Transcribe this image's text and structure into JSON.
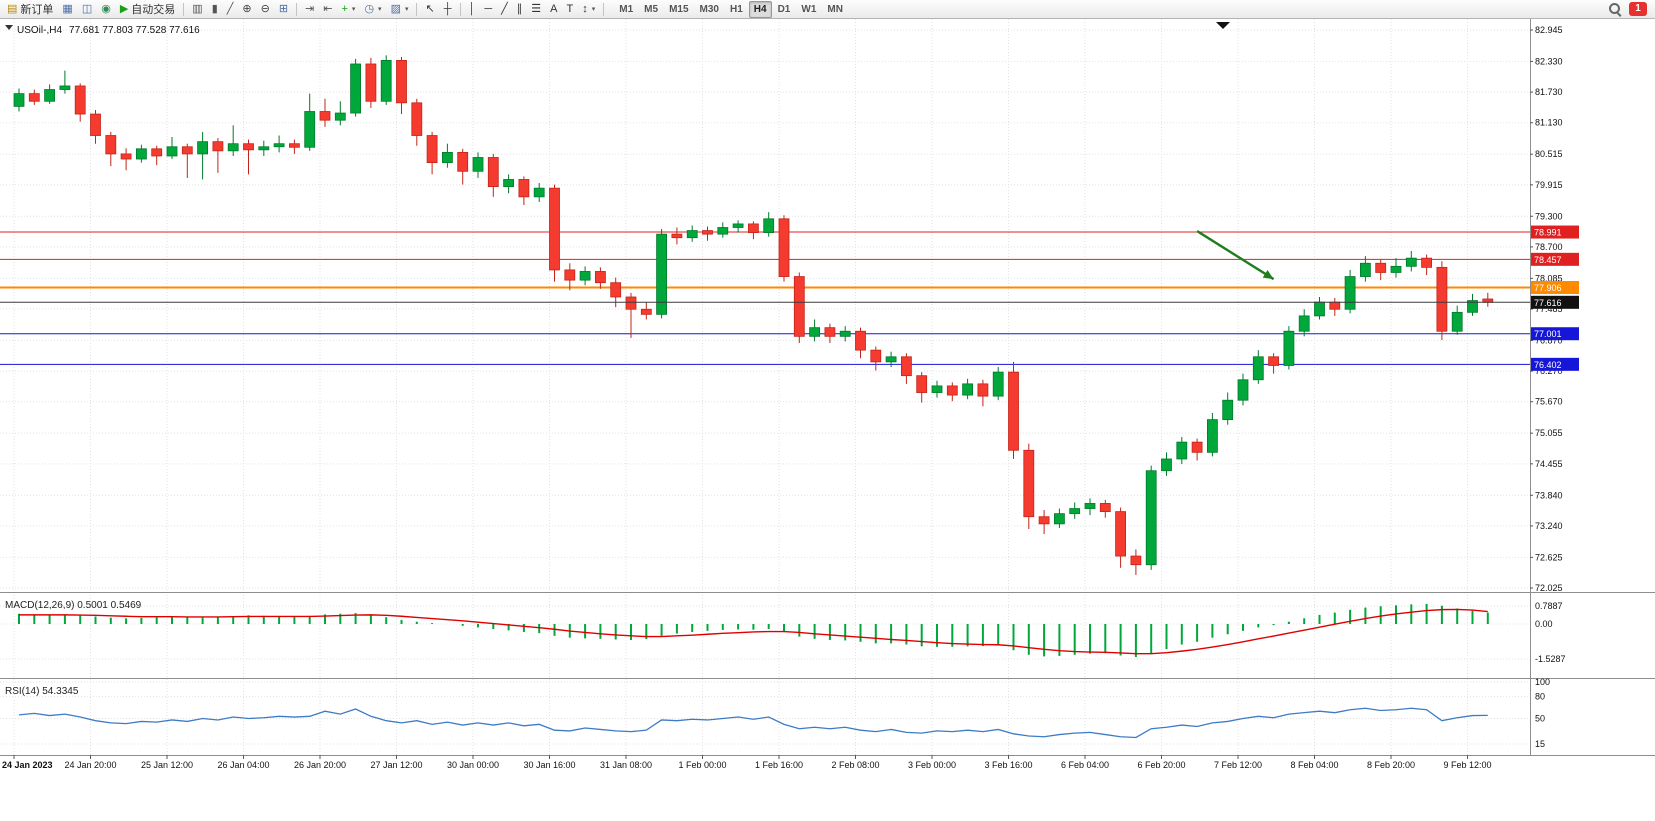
{
  "toolbar": {
    "items": [
      {
        "name": "new-order-button",
        "glyph": "▤",
        "color": "#b8860b",
        "label": "新订单"
      },
      {
        "name": "charts-window-button",
        "glyph": "▦",
        "color": "#4a6da7"
      },
      {
        "name": "profiles-button",
        "glyph": "◫",
        "color": "#4a6da7"
      },
      {
        "name": "community-button",
        "glyph": "◉",
        "color": "#2e8b57"
      },
      {
        "name": "autotrading-button",
        "glyph": "▶",
        "color": "#18a018",
        "label": "自动交易"
      },
      {
        "type": "sep"
      },
      {
        "name": "bar-chart-type-button",
        "glyph": "▥",
        "color": "#555555"
      },
      {
        "name": "candlestick-chart-type-button",
        "glyph": "▮",
        "color": "#555555"
      },
      {
        "name": "line-chart-type-button",
        "glyph": "╱",
        "color": "#555555"
      },
      {
        "name": "zoom-in-button",
        "glyph": "⊕",
        "color": "#444444"
      },
      {
        "name": "zoom-out-button",
        "glyph": "⊖",
        "color": "#444444"
      },
      {
        "name": "tile-windows-button",
        "glyph": "⊞",
        "color": "#4a6da7"
      },
      {
        "type": "sep"
      },
      {
        "name": "auto-scroll-button",
        "glyph": "⇥",
        "color": "#555555"
      },
      {
        "name": "chart-shift-button",
        "glyph": "⇤",
        "color": "#555555"
      },
      {
        "name": "indicators-button",
        "glyph": "+",
        "color": "#18a018",
        "caret": true
      },
      {
        "name": "periods-button",
        "glyph": "◷",
        "color": "#4a6da7",
        "caret": true
      },
      {
        "name": "templates-button",
        "glyph": "▨",
        "color": "#4a6da7",
        "caret": true
      },
      {
        "type": "sep"
      },
      {
        "name": "cursor-button",
        "glyph": "↖",
        "color": "#333333"
      },
      {
        "name": "crosshair-button",
        "glyph": "┼",
        "color": "#333333"
      },
      {
        "type": "sep"
      },
      {
        "name": "vertical-line-button",
        "glyph": "│",
        "color": "#333333"
      },
      {
        "name": "horizontal-line-button",
        "glyph": "─",
        "color": "#333333"
      },
      {
        "name": "trendline-button",
        "glyph": "╱",
        "color": "#333333"
      },
      {
        "name": "channel-button",
        "glyph": "∥",
        "color": "#333333"
      },
      {
        "name": "fibonacci-button",
        "glyph": "☰",
        "color": "#333333"
      },
      {
        "name": "text-button",
        "glyph": "A",
        "color": "#333333"
      },
      {
        "name": "label-button",
        "glyph": "T",
        "color": "#333333"
      },
      {
        "name": "arrows-button",
        "glyph": "↕",
        "color": "#333333",
        "caret": true
      },
      {
        "type": "sep"
      }
    ],
    "timeframes": [
      "M1",
      "M5",
      "M15",
      "M30",
      "H1",
      "H4",
      "D1",
      "W1",
      "MN"
    ],
    "active_timeframe": "H4",
    "notification_count": "1"
  },
  "chart": {
    "symbol_label": "USOil-,H4",
    "quote": "77.681 77.803 77.528 77.616",
    "price_axis": [
      "82.945",
      "82.330",
      "81.730",
      "81.130",
      "80.515",
      "79.915",
      "79.300",
      "78.700",
      "78.085",
      "77.485",
      "76.870",
      "76.270",
      "75.670",
      "75.055",
      "74.455",
      "73.840",
      "73.240",
      "72.625",
      "72.025"
    ],
    "hlines": [
      {
        "price": 78.991,
        "label": "78.991",
        "color": "#E02020",
        "thickness": 1
      },
      {
        "price": 78.457,
        "label": "78.457",
        "color": "#E02020",
        "thickness": 1
      },
      {
        "price": 77.906,
        "label": "77.906",
        "color": "#FF8A00",
        "thickness": 2
      },
      {
        "price": 77.001,
        "label": "77.001",
        "color": "#1616D8",
        "thickness": 1
      },
      {
        "price": 76.402,
        "label": "76.402",
        "color": "#1616D8",
        "thickness": 1
      }
    ],
    "bid": {
      "price": 77.616,
      "label": "77.616",
      "color": "#111111"
    },
    "arrow": {
      "from": {
        "index": 77,
        "price": 79.01
      },
      "to": {
        "index": 82,
        "price": 78.07
      },
      "color": "#1E7E1E"
    },
    "time_labels": [
      "24 Jan 2023",
      "24 Jan 20:00",
      "25 Jan 12:00",
      "26 Jan 04:00",
      "26 Jan 20:00",
      "27 Jan 12:00",
      "30 Jan 00:00",
      "30 Jan 16:00",
      "31 Jan 08:00",
      "1 Feb 00:00",
      "1 Feb 16:00",
      "2 Feb 08:00",
      "3 Feb 00:00",
      "3 Feb 16:00",
      "6 Feb 04:00",
      "6 Feb 20:00",
      "7 Feb 12:00",
      "8 Feb 04:00",
      "8 Feb 20:00",
      "9 Feb 12:00"
    ]
  },
  "chart_data": {
    "type": "candlestick",
    "title": "USOil H4",
    "symbol": "USOil",
    "timeframe": "H4",
    "ylim": [
      72.025,
      82.945
    ],
    "current_bar": {
      "open": 77.681,
      "high": 77.803,
      "low": 77.528,
      "close": 77.616
    },
    "candles": [
      [
        81.45,
        81.8,
        81.35,
        81.7
      ],
      [
        81.7,
        81.78,
        81.48,
        81.55
      ],
      [
        81.55,
        81.88,
        81.5,
        81.78
      ],
      [
        81.78,
        82.15,
        81.7,
        81.85
      ],
      [
        81.85,
        81.9,
        81.15,
        81.3
      ],
      [
        81.3,
        81.38,
        80.72,
        80.88
      ],
      [
        80.88,
        80.95,
        80.28,
        80.52
      ],
      [
        80.52,
        80.63,
        80.2,
        80.42
      ],
      [
        80.42,
        80.7,
        80.35,
        80.62
      ],
      [
        80.62,
        80.68,
        80.3,
        80.48
      ],
      [
        80.48,
        80.85,
        80.42,
        80.66
      ],
      [
        80.66,
        80.72,
        80.05,
        80.52
      ],
      [
        80.52,
        80.95,
        80.02,
        80.76
      ],
      [
        80.76,
        80.83,
        80.15,
        80.58
      ],
      [
        80.58,
        81.08,
        80.48,
        80.72
      ],
      [
        80.72,
        80.8,
        80.12,
        80.6
      ],
      [
        80.6,
        80.78,
        80.48,
        80.66
      ],
      [
        80.66,
        80.88,
        80.55,
        80.72
      ],
      [
        80.72,
        80.8,
        80.52,
        80.65
      ],
      [
        80.65,
        81.7,
        80.58,
        81.35
      ],
      [
        81.35,
        81.6,
        81.05,
        81.18
      ],
      [
        81.18,
        81.55,
        81.08,
        81.32
      ],
      [
        81.32,
        82.38,
        81.25,
        82.28
      ],
      [
        82.28,
        82.4,
        81.42,
        81.55
      ],
      [
        81.55,
        82.45,
        81.48,
        82.35
      ],
      [
        82.35,
        82.42,
        81.3,
        81.52
      ],
      [
        81.52,
        81.6,
        80.68,
        80.88
      ],
      [
        80.88,
        80.95,
        80.12,
        80.35
      ],
      [
        80.35,
        80.72,
        80.25,
        80.55
      ],
      [
        80.55,
        80.62,
        79.92,
        80.18
      ],
      [
        80.18,
        80.55,
        80.05,
        80.45
      ],
      [
        80.45,
        80.52,
        79.68,
        79.88
      ],
      [
        79.88,
        80.12,
        79.75,
        80.02
      ],
      [
        80.02,
        80.08,
        79.52,
        79.68
      ],
      [
        79.68,
        79.95,
        79.58,
        79.85
      ],
      [
        79.85,
        79.92,
        78.02,
        78.25
      ],
      [
        78.25,
        78.38,
        77.85,
        78.05
      ],
      [
        78.05,
        78.32,
        77.95,
        78.22
      ],
      [
        78.22,
        78.3,
        77.88,
        78.0
      ],
      [
        78.0,
        78.1,
        77.52,
        77.72
      ],
      [
        77.72,
        77.8,
        76.92,
        77.48
      ],
      [
        77.48,
        77.62,
        77.28,
        77.38
      ],
      [
        77.38,
        79.05,
        77.3,
        78.95
      ],
      [
        78.95,
        79.08,
        78.75,
        78.88
      ],
      [
        78.88,
        79.12,
        78.8,
        79.02
      ],
      [
        79.02,
        79.1,
        78.82,
        78.95
      ],
      [
        78.95,
        79.18,
        78.88,
        79.08
      ],
      [
        79.08,
        79.22,
        78.98,
        79.15
      ],
      [
        79.15,
        79.2,
        78.85,
        78.98
      ],
      [
        78.98,
        79.38,
        78.9,
        79.25
      ],
      [
        79.25,
        79.32,
        78.02,
        78.12
      ],
      [
        78.12,
        78.2,
        76.82,
        76.95
      ],
      [
        76.95,
        77.28,
        76.85,
        77.12
      ],
      [
        77.12,
        77.2,
        76.82,
        76.95
      ],
      [
        76.95,
        77.15,
        76.85,
        77.05
      ],
      [
        77.05,
        77.12,
        76.52,
        76.68
      ],
      [
        76.68,
        76.75,
        76.28,
        76.45
      ],
      [
        76.45,
        76.65,
        76.35,
        76.55
      ],
      [
        76.55,
        76.62,
        76.02,
        76.18
      ],
      [
        76.18,
        76.25,
        75.65,
        75.85
      ],
      [
        75.85,
        76.08,
        75.75,
        75.98
      ],
      [
        75.98,
        76.05,
        75.68,
        75.8
      ],
      [
        75.8,
        76.12,
        75.72,
        76.02
      ],
      [
        76.02,
        76.1,
        75.58,
        75.78
      ],
      [
        75.78,
        76.35,
        75.7,
        76.25
      ],
      [
        76.25,
        76.45,
        74.55,
        74.72
      ],
      [
        74.72,
        74.85,
        73.18,
        73.42
      ],
      [
        73.42,
        73.55,
        73.08,
        73.28
      ],
      [
        73.28,
        73.58,
        73.2,
        73.48
      ],
      [
        73.48,
        73.7,
        73.38,
        73.58
      ],
      [
        73.58,
        73.78,
        73.45,
        73.68
      ],
      [
        73.68,
        73.75,
        73.4,
        73.52
      ],
      [
        73.52,
        73.6,
        72.42,
        72.65
      ],
      [
        72.65,
        72.78,
        72.28,
        72.48
      ],
      [
        72.48,
        74.42,
        72.38,
        74.32
      ],
      [
        74.32,
        74.68,
        74.22,
        74.55
      ],
      [
        74.55,
        74.98,
        74.45,
        74.88
      ],
      [
        74.88,
        74.95,
        74.52,
        74.68
      ],
      [
        74.68,
        75.45,
        74.6,
        75.32
      ],
      [
        75.32,
        75.85,
        75.22,
        75.7
      ],
      [
        75.7,
        76.22,
        75.6,
        76.1
      ],
      [
        76.1,
        76.68,
        76.02,
        76.55
      ],
      [
        76.55,
        76.62,
        76.22,
        76.38
      ],
      [
        76.38,
        77.15,
        76.3,
        77.05
      ],
      [
        77.05,
        77.48,
        76.95,
        77.35
      ],
      [
        77.35,
        77.72,
        77.28,
        77.62
      ],
      [
        77.62,
        77.7,
        77.35,
        77.48
      ],
      [
        77.48,
        78.25,
        77.4,
        78.12
      ],
      [
        78.12,
        78.52,
        78.02,
        78.38
      ],
      [
        78.38,
        78.45,
        78.05,
        78.2
      ],
      [
        78.2,
        78.48,
        78.1,
        78.32
      ],
      [
        78.32,
        78.62,
        78.22,
        78.48
      ],
      [
        78.48,
        78.55,
        78.15,
        78.3
      ],
      [
        78.3,
        78.42,
        76.88,
        77.05
      ],
      [
        77.05,
        77.55,
        76.98,
        77.42
      ],
      [
        77.42,
        77.78,
        77.35,
        77.65
      ],
      [
        77.681,
        77.803,
        77.528,
        77.616
      ]
    ],
    "macd": {
      "label": "MACD(12,26,9) 0.5001 0.5469",
      "params": "12,26,9",
      "current_macd": 0.5001,
      "current_signal": 0.5469,
      "scale_ticks": [
        "0.7887",
        "0.00",
        "-1.5287"
      ],
      "histogram": [
        0.45,
        0.42,
        0.4,
        0.43,
        0.38,
        0.33,
        0.28,
        0.25,
        0.27,
        0.3,
        0.32,
        0.3,
        0.28,
        0.31,
        0.35,
        0.38,
        0.36,
        0.34,
        0.33,
        0.35,
        0.42,
        0.45,
        0.48,
        0.42,
        0.3,
        0.18,
        0.1,
        0.04,
        0.0,
        -0.08,
        -0.15,
        -0.22,
        -0.28,
        -0.35,
        -0.4,
        -0.52,
        -0.6,
        -0.63,
        -0.65,
        -0.68,
        -0.7,
        -0.66,
        -0.52,
        -0.42,
        -0.35,
        -0.3,
        -0.26,
        -0.24,
        -0.25,
        -0.22,
        -0.35,
        -0.55,
        -0.65,
        -0.7,
        -0.72,
        -0.78,
        -0.85,
        -0.85,
        -0.9,
        -0.98,
        -1.0,
        -1.0,
        -0.98,
        -0.97,
        -0.95,
        -1.15,
        -1.35,
        -1.42,
        -1.4,
        -1.35,
        -1.3,
        -1.28,
        -1.38,
        -1.45,
        -1.3,
        -1.1,
        -0.9,
        -0.78,
        -0.6,
        -0.45,
        -0.3,
        -0.15,
        -0.05,
        0.1,
        0.25,
        0.4,
        0.5,
        0.62,
        0.72,
        0.78,
        0.82,
        0.86,
        0.88,
        0.8,
        0.68,
        0.58,
        0.5001
      ],
      "signal": [
        0.4,
        0.4,
        0.4,
        0.4,
        0.39,
        0.38,
        0.36,
        0.34,
        0.32,
        0.32,
        0.32,
        0.31,
        0.31,
        0.31,
        0.32,
        0.33,
        0.33,
        0.33,
        0.33,
        0.33,
        0.35,
        0.37,
        0.39,
        0.4,
        0.38,
        0.34,
        0.29,
        0.24,
        0.19,
        0.14,
        0.08,
        0.02,
        -0.04,
        -0.1,
        -0.16,
        -0.23,
        -0.31,
        -0.37,
        -0.43,
        -0.48,
        -0.52,
        -0.55,
        -0.55,
        -0.52,
        -0.49,
        -0.45,
        -0.41,
        -0.38,
        -0.35,
        -0.33,
        -0.33,
        -0.37,
        -0.43,
        -0.48,
        -0.53,
        -0.58,
        -0.63,
        -0.68,
        -0.72,
        -0.77,
        -0.82,
        -0.86,
        -0.88,
        -0.9,
        -0.91,
        -0.96,
        -1.04,
        -1.11,
        -1.17,
        -1.21,
        -1.23,
        -1.24,
        -1.27,
        -1.3,
        -1.3,
        -1.26,
        -1.19,
        -1.11,
        -1.01,
        -0.9,
        -0.78,
        -0.65,
        -0.53,
        -0.4,
        -0.27,
        -0.14,
        -0.01,
        0.12,
        0.24,
        0.35,
        0.44,
        0.52,
        0.59,
        0.63,
        0.64,
        0.61,
        0.5469
      ]
    },
    "rsi": {
      "label": "RSI(14) 54.3345",
      "period": 14,
      "current": 54.3345,
      "scale_ticks": [
        "100",
        "80",
        "50",
        "15"
      ],
      "values": [
        55,
        57,
        54,
        56,
        52,
        47,
        44,
        43,
        46,
        45,
        48,
        46,
        50,
        48,
        52,
        50,
        51,
        53,
        52,
        53,
        60,
        56,
        63,
        53,
        47,
        44,
        47,
        42,
        45,
        41,
        44,
        41,
        44,
        40,
        42,
        34,
        33,
        37,
        35,
        33,
        32,
        34,
        48,
        47,
        49,
        48,
        50,
        52,
        49,
        52,
        42,
        36,
        38,
        36,
        38,
        34,
        32,
        35,
        31,
        30,
        33,
        32,
        34,
        32,
        35,
        29,
        26,
        25,
        28,
        30,
        31,
        28,
        25,
        24,
        36,
        38,
        41,
        39,
        44,
        46,
        50,
        53,
        51,
        56,
        58,
        60,
        58,
        62,
        64,
        61,
        62,
        64,
        62,
        47,
        51,
        54,
        54.33
      ]
    }
  },
  "colors": {
    "bull": "#00A83C",
    "bull_border": "#007A2B",
    "bear": "#F53B30",
    "bear_border": "#C22418",
    "macd_histogram": "#00A83C",
    "macd_signal": "#E00000",
    "rsi_line": "#3E7BC6",
    "bid_line": "#3A3A3A",
    "separator": "#8E8E8E"
  }
}
